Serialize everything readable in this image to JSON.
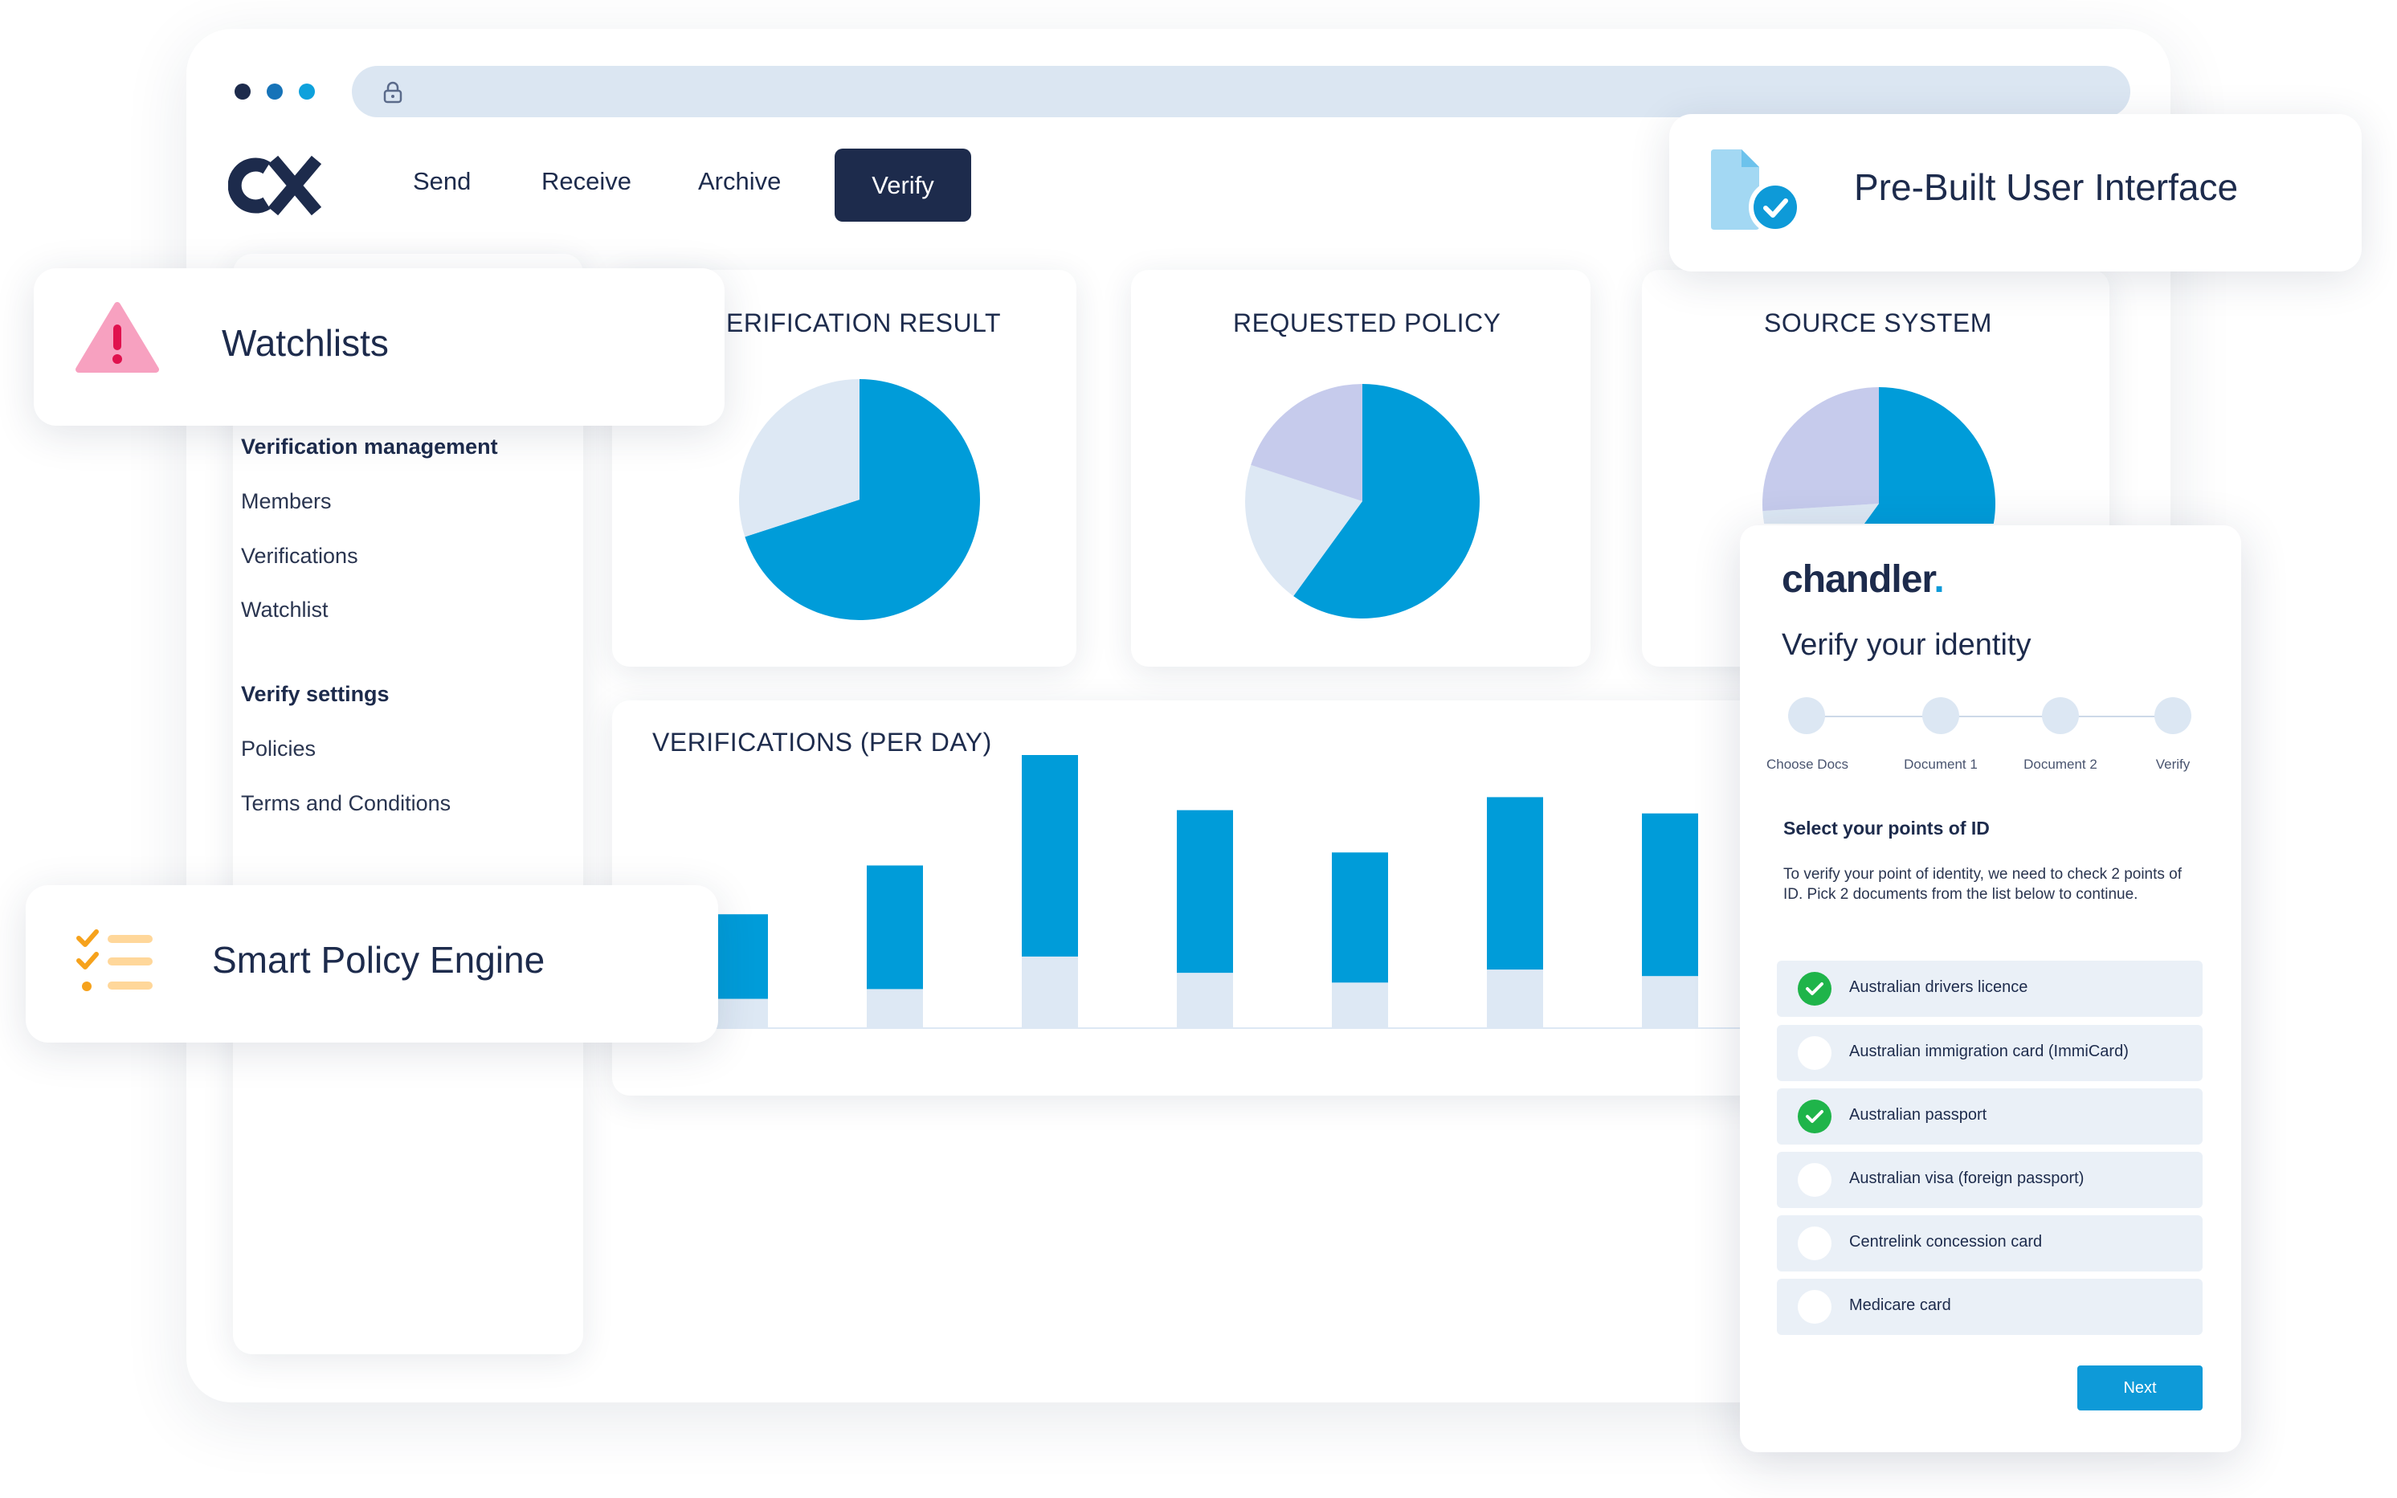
{
  "nav": {
    "logo_text": "CX",
    "items": [
      "Send",
      "Receive",
      "Archive"
    ],
    "active": "Verify"
  },
  "sidebar": {
    "sections": [
      {
        "title": "Verification management",
        "items": [
          "Members",
          "Verifications",
          "Watchlist"
        ]
      },
      {
        "title": "Verify settings",
        "items": [
          "Policies",
          "Terms and Conditions"
        ]
      }
    ]
  },
  "features": {
    "watchlists": "Watchlists",
    "smart_policy": "Smart Policy Engine",
    "prebuilt": "Pre-Built User Interface"
  },
  "chart_data": [
    {
      "type": "pie",
      "title": "ERIFICATION RESULT",
      "slices": [
        {
          "value": 70,
          "color": "#009cd9"
        },
        {
          "value": 30,
          "color": "#dde8f4"
        }
      ]
    },
    {
      "type": "pie",
      "title": "REQUESTED POLICY",
      "slices": [
        {
          "value": 60,
          "color": "#009cd9"
        },
        {
          "value": 20,
          "color": "#dde8f4"
        },
        {
          "value": 20,
          "color": "#c6cbec"
        }
      ]
    },
    {
      "type": "pie",
      "title": "SOURCE SYSTEM",
      "slices": [
        {
          "value": 60,
          "color": "#009cd9"
        },
        {
          "value": 14,
          "color": "#dde8f4"
        },
        {
          "value": 26,
          "color": "#c6cbec"
        }
      ]
    },
    {
      "type": "bar",
      "title": "VERIFICATIONS  (PER DAY)",
      "series": [
        {
          "values": [
            26,
            38,
            66,
            50,
            40,
            53,
            50
          ],
          "color": "#009cd9"
        },
        {
          "values": [
            9,
            12,
            22,
            17,
            14,
            18,
            16
          ],
          "color": "#dde8f4"
        }
      ]
    }
  ],
  "chandler": {
    "brand": "chandler",
    "title": "Verify your identity",
    "steps": [
      "Choose Docs",
      "Document 1",
      "Document 2",
      "Verify"
    ],
    "section_title": "Select your points of ID",
    "instructions": "To verify your point of identity, we need to check 2 points of ID. Pick 2 documents from the list below to continue.",
    "options": [
      {
        "label": "Australian drivers licence",
        "checked": true
      },
      {
        "label": "Australian immigration card (ImmiCard)",
        "checked": false
      },
      {
        "label": "Australian passport",
        "checked": true
      },
      {
        "label": "Australian visa (foreign passport)",
        "checked": false
      },
      {
        "label": "Centrelink concession card",
        "checked": false
      },
      {
        "label": "Medicare card",
        "checked": false
      }
    ],
    "next_label": "Next"
  },
  "colors": {
    "primary": "#009cd9",
    "navy": "#1d2b4c",
    "light": "#dde8f4",
    "lavender": "#c6cbec"
  }
}
